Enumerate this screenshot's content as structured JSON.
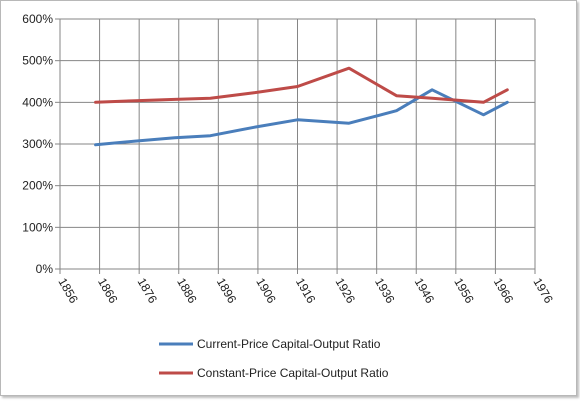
{
  "chart_data": {
    "type": "line",
    "title": "",
    "xlabel": "",
    "ylabel": "",
    "x_ticks": [
      "1856",
      "1866",
      "1876",
      "1886",
      "1896",
      "1906",
      "1916",
      "1926",
      "1936",
      "1946",
      "1956",
      "1966",
      "1976"
    ],
    "x_range": [
      1856,
      1976
    ],
    "y_ticks": [
      "0%",
      "100%",
      "200%",
      "300%",
      "400%",
      "500%",
      "600%"
    ],
    "ylim": [
      0,
      600
    ],
    "y_unit": "%",
    "grid": true,
    "legend_position": "bottom",
    "series": [
      {
        "name": "Current-Price Capital-Output Ratio",
        "color": "#4a7ebb",
        "x": [
          1865,
          1875,
          1885,
          1894,
          1905,
          1916,
          1929,
          1941,
          1950,
          1963,
          1969
        ],
        "y": [
          298,
          307,
          315,
          320,
          340,
          358,
          350,
          380,
          430,
          370,
          400
        ]
      },
      {
        "name": "Constant-Price Capital-Output Ratio",
        "color": "#be4b48",
        "x": [
          1865,
          1875,
          1885,
          1894,
          1905,
          1916,
          1929,
          1941,
          1950,
          1963,
          1969
        ],
        "y": [
          400,
          404,
          407,
          410,
          423,
          438,
          482,
          416,
          410,
          400,
          430
        ]
      }
    ]
  }
}
